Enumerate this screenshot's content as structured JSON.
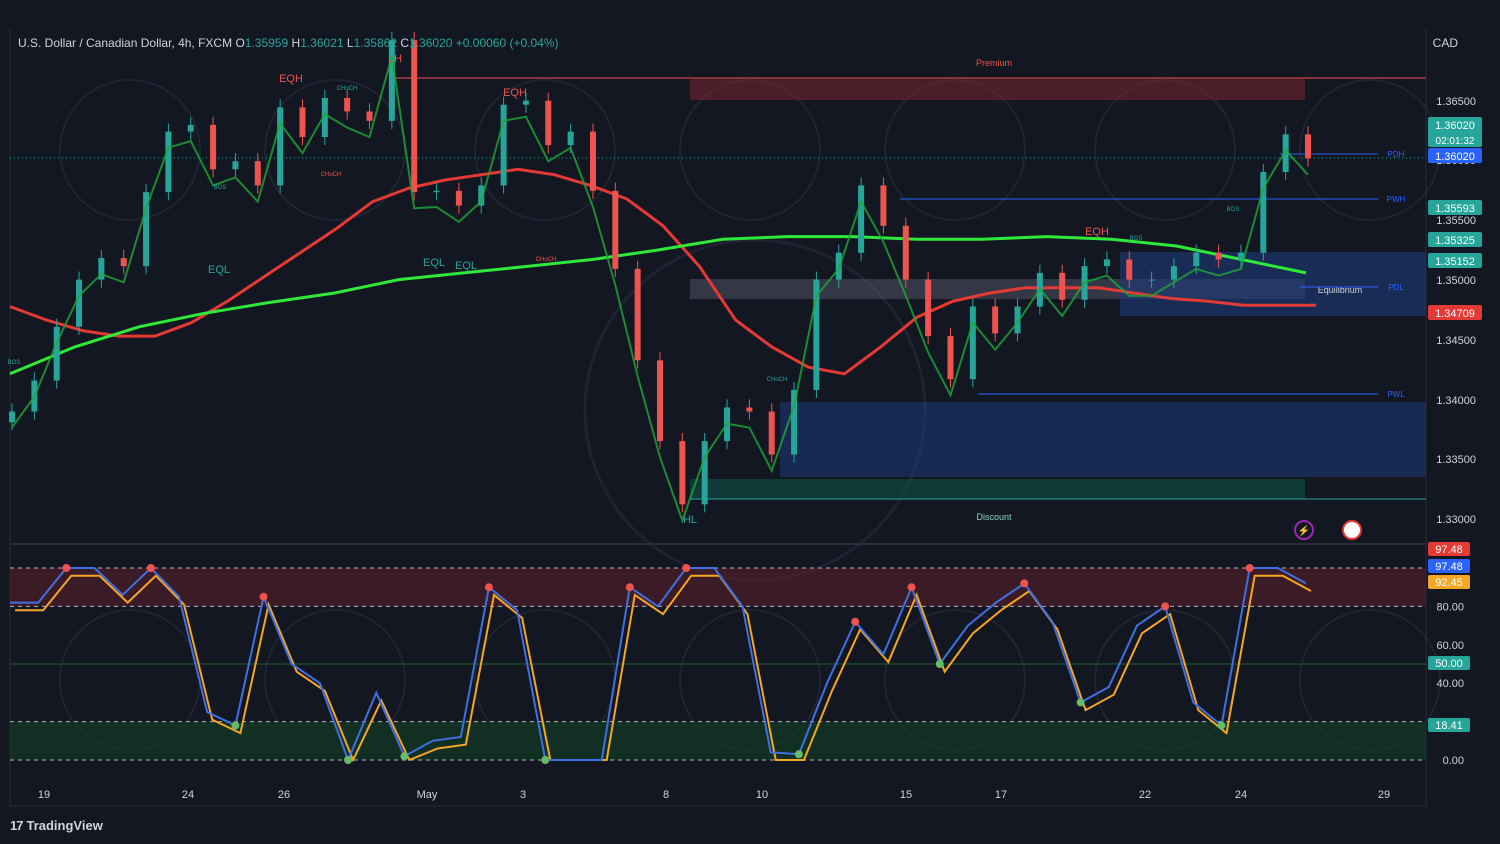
{
  "header": {
    "symbol": "U.S. Dollar / Canadian Dollar, 4h, FXCM",
    "open_label": "O",
    "open": "1.35959",
    "high_label": "H",
    "high": "1.36021",
    "low_label": "L",
    "low": "1.35862",
    "close_label": "C",
    "close": "1.36020",
    "change": "+0.00060 (+0.04%)",
    "currency": "CAD"
  },
  "colors": {
    "background": "#131722",
    "up_candle": "#26a69a",
    "down_candle": "#ef5350",
    "ema_slow": "#e53935",
    "ema_fast": "#2ee83a",
    "stoch_k": "#3f6fe0",
    "stoch_d": "#f5a623",
    "premium_zone": "#7a2430",
    "discount_zone": "#0f4a42",
    "demand_zone": "#1e3a78"
  },
  "chart_data": {
    "type": "candlestick",
    "x_ticks": [
      "19",
      "24",
      "26",
      "May",
      "3",
      "8",
      "10",
      "15",
      "17",
      "22",
      "24",
      "29"
    ],
    "ylim": [
      1.3295,
      1.3677
    ],
    "y_ticks": [
      "1.36500",
      "1.36000",
      "1.35500",
      "1.35000",
      "1.34500",
      "1.34000",
      "1.33500",
      "1.33000"
    ],
    "price_series": [
      1.3392,
      1.3415,
      1.3455,
      1.349,
      1.3506,
      1.35,
      1.3555,
      1.36,
      1.3605,
      1.3572,
      1.3578,
      1.356,
      1.3618,
      1.3596,
      1.3625,
      1.3615,
      1.3608,
      1.3668,
      1.3555,
      1.3556,
      1.3545,
      1.356,
      1.362,
      1.3623,
      1.359,
      1.36,
      1.3556,
      1.3498,
      1.343,
      1.337,
      1.3323,
      1.337,
      1.3395,
      1.3392,
      1.336,
      1.3408,
      1.349,
      1.351,
      1.356,
      1.353,
      1.349,
      1.3448,
      1.3416,
      1.347,
      1.345,
      1.347,
      1.3495,
      1.3475,
      1.35,
      1.3505,
      1.349,
      1.349,
      1.35,
      1.351,
      1.3505,
      1.351,
      1.357,
      1.3598,
      1.358
    ],
    "overlays": [
      {
        "name": "EMA slow",
        "color": "red",
        "values": [
          1.347,
          1.346,
          1.3452,
          1.3448,
          1.3448,
          1.3458,
          1.3474,
          1.3492,
          1.351,
          1.3528,
          1.3548,
          1.3558,
          1.3564,
          1.3568,
          1.3572,
          1.3568,
          1.356,
          1.355,
          1.353,
          1.35,
          1.346,
          1.344,
          1.3425,
          1.342,
          1.344,
          1.3462,
          1.3474,
          1.348,
          1.3484,
          1.3484,
          1.3484,
          1.348,
          1.3476,
          1.3474,
          1.3471,
          1.3471,
          1.3471
        ]
      },
      {
        "name": "EMA long",
        "color": "green",
        "values": [
          1.342,
          1.344,
          1.3455,
          1.3465,
          1.3473,
          1.348,
          1.349,
          1.3495,
          1.35,
          1.3505,
          1.3512,
          1.352,
          1.3522,
          1.3522,
          1.352,
          1.352,
          1.3522,
          1.352,
          1.3515,
          1.3505,
          1.3495
        ]
      }
    ],
    "levels": [
      {
        "label": "PDH",
        "price": 1.3603
      },
      {
        "label": "PWH",
        "price": 1.3566
      },
      {
        "label": "PDL",
        "price": 1.3495
      },
      {
        "label": "PWL",
        "price": 1.3405
      }
    ],
    "zones": [
      {
        "label": "Premium",
        "from": 1.3651,
        "to": 1.367
      },
      {
        "label": "Equilibrium",
        "from": 1.3483,
        "to": 1.35
      },
      {
        "label": "Discount",
        "from": 1.3315,
        "to": 1.3333
      }
    ],
    "annotations": [
      "LH",
      "EQH",
      "EQH",
      "EQH",
      "EQL",
      "EQL",
      "EQL",
      "HL",
      "BOS",
      "BOS",
      "BOS",
      "BOS",
      "CHoCH",
      "CHoCH",
      "CHoCH",
      "CHoCH"
    ],
    "price_labels": [
      {
        "text": "1.36020",
        "sub": "02:01:32",
        "bg": "#26a69a"
      },
      {
        "text": "1.36020",
        "bg": "#2962ff"
      },
      {
        "text": "1.35593",
        "bg": "#26a69a"
      },
      {
        "text": "1.35325",
        "bg": "#26a69a"
      },
      {
        "text": "1.35152",
        "bg": "#26a69a"
      },
      {
        "text": "1.34709",
        "bg": "#e53935"
      }
    ],
    "stochastic": {
      "ylim": [
        0,
        100
      ],
      "y_ticks": [
        "80.00",
        "60.00",
        "40.00",
        "0.00"
      ],
      "levels": [
        100,
        80,
        50,
        20,
        0
      ],
      "k": [
        82,
        82,
        100,
        100,
        86,
        100,
        85,
        25,
        18,
        85,
        50,
        40,
        0,
        35,
        2,
        10,
        12,
        90,
        78,
        0,
        0,
        0,
        90,
        80,
        100,
        100,
        80,
        4,
        3,
        40,
        72,
        55,
        90,
        50,
        70,
        82,
        92,
        72,
        30,
        38,
        70,
        80,
        30,
        18,
        100,
        100,
        92
      ],
      "d": [
        82,
        82,
        100,
        100,
        86,
        100,
        85,
        25,
        18,
        85,
        50,
        40,
        0,
        35,
        2,
        10,
        12,
        90,
        78,
        0,
        0,
        0,
        90,
        80,
        100,
        100,
        80,
        4,
        3,
        40,
        72,
        55,
        90,
        50,
        70,
        82,
        92,
        72,
        30,
        38,
        70,
        80,
        30,
        18,
        100,
        100,
        92
      ],
      "price_labels": [
        {
          "text": "97.48",
          "bg": "#e53935"
        },
        {
          "text": "97.48",
          "bg": "#2962ff"
        },
        {
          "text": "92.45",
          "bg": "#f5a623"
        },
        {
          "text": "50.00",
          "bg": "#26a69a"
        },
        {
          "text": "18.41",
          "bg": "#26a69a"
        }
      ]
    }
  },
  "footer": {
    "brand": "TradingView"
  }
}
